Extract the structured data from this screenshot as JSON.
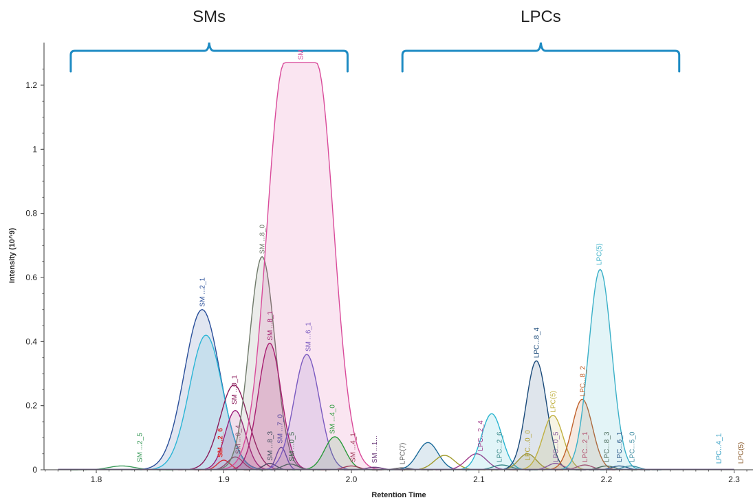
{
  "colors": {
    "bracket": "#1e8bc3",
    "axis": "#333333"
  },
  "chart_data": {
    "type": "area",
    "xlabel": "Retention Time",
    "ylabel": "Intensity (10^9)",
    "xlim": [
      1.76,
      2.31
    ],
    "ylim": [
      0,
      1.32
    ],
    "x_ticks": [
      "1.8",
      "1.9",
      "2.0",
      "2.1",
      "2.2",
      "2.3"
    ],
    "y_ticks": [
      "0",
      "0.2",
      "0.4",
      "0.6",
      "0.8",
      "1",
      "1.2"
    ],
    "groups": [
      {
        "label": "SMs",
        "x_start": 1.78,
        "x_end": 1.997
      },
      {
        "label": "LPCs",
        "x_start": 2.04,
        "x_end": 2.257
      }
    ],
    "series": [
      {
        "label": "SM ...2_5",
        "color": "#3a9a5a",
        "mu": 1.82,
        "height": 0.012,
        "width": 0.01,
        "label_x": 1.834,
        "label_y": 0.015,
        "fill": false
      },
      {
        "label": "SM ...2_1",
        "color": "#2a4f9a",
        "mu": 1.883,
        "height": 0.5,
        "width": 0.014,
        "label_x": 1.883,
        "label_y": 0.5,
        "fill": true
      },
      {
        "label": "",
        "color": "#2bb5d6",
        "mu": 1.886,
        "height": 0.42,
        "width": 0.013,
        "fill": true
      },
      {
        "label": "SM ...2_6",
        "color": "#e03030",
        "mu": 1.9,
        "height": 0.03,
        "width": 0.005,
        "label_x": 1.897,
        "label_y": 0.03,
        "fill": false,
        "bold": true
      },
      {
        "label": "SM ...0_4",
        "color": "#8a4a6a",
        "mu": 1.909,
        "height": 0.04,
        "width": 0.006,
        "label_x": 1.911,
        "label_y": 0.04,
        "fill": false
      },
      {
        "label": "SM ...0_1",
        "color": "#8a1a5a",
        "mu": 1.908,
        "height": 0.265,
        "width": 0.011,
        "label_x": 1.908,
        "label_y": 0.195,
        "fill": false
      },
      {
        "label": "",
        "color": "#9a1a7a",
        "mu": 1.909,
        "height": 0.185,
        "width": 0.008,
        "fill": true
      },
      {
        "label": "SM ...8_0",
        "color": "#6f7a6a",
        "mu": 1.93,
        "height": 0.665,
        "width": 0.01,
        "label_x": 1.93,
        "label_y": 0.665,
        "fill": true
      },
      {
        "label": "SM ...8_1",
        "color": "#a0186a",
        "mu": 1.936,
        "height": 0.395,
        "width": 0.009,
        "label_x": 1.936,
        "label_y": 0.395,
        "fill": true
      },
      {
        "label": "SM ...8_3",
        "color": "#3a4a5a",
        "mu": 1.936,
        "height": 0.02,
        "width": 0.005,
        "label_x": 1.936,
        "label_y": 0.02,
        "fill": false
      },
      {
        "label": "SM ...7_0",
        "color": "#5a4aa0",
        "mu": 1.945,
        "height": 0.07,
        "width": 0.004,
        "label_x": 1.944,
        "label_y": 0.073,
        "fill": false
      },
      {
        "label": "SM ...0_5",
        "color": "#3a6a4a",
        "mu": 1.952,
        "height": 0.018,
        "width": 0.006,
        "label_x": 1.953,
        "label_y": 0.018,
        "fill": false
      },
      {
        "label": "SM",
        "color": "#d94a9a",
        "mu": 1.96,
        "height": 1.27,
        "width": 0.0135,
        "plateau": 0.0125,
        "label_x": 1.96,
        "label_y": 1.27,
        "fill": true
      },
      {
        "label": "SM ...6_1",
        "color": "#7a5ac0",
        "mu": 1.965,
        "height": 0.36,
        "width": 0.01,
        "label_x": 1.966,
        "label_y": 0.36,
        "fill": true
      },
      {
        "label": "SM ...4_0",
        "color": "#2a9a3a",
        "mu": 1.987,
        "height": 0.103,
        "width": 0.008,
        "label_x": 1.985,
        "label_y": 0.103,
        "fill": true
      },
      {
        "label": "SM ...4_1",
        "color": "#a03a5a",
        "mu": 2.0,
        "height": 0.012,
        "width": 0.006,
        "label_x": 2.001,
        "label_y": 0.015,
        "fill": false
      },
      {
        "label": "SM ...1...",
        "color": "#6a3a7a",
        "mu": 2.018,
        "height": 0.008,
        "width": 0.006,
        "label_x": 2.018,
        "label_y": 0.012,
        "fill": false
      },
      {
        "label": "LPC(7)",
        "color": "#5a5a5a",
        "mu": 2.04,
        "height": 0.006,
        "width": 0.006,
        "label_x": 2.04,
        "label_y": 0.008,
        "fill": false
      },
      {
        "label": "",
        "color": "#1a6a9a",
        "mu": 2.06,
        "height": 0.085,
        "width": 0.008,
        "fill": true
      },
      {
        "label": "",
        "color": "#a09a2a",
        "mu": 2.073,
        "height": 0.045,
        "width": 0.008,
        "fill": false
      },
      {
        "label": "LPC...2_4",
        "color": "#a03a8a",
        "mu": 2.098,
        "height": 0.05,
        "width": 0.008,
        "label_x": 2.101,
        "label_y": 0.05,
        "fill": false
      },
      {
        "label": "",
        "color": "#2ab5d0",
        "mu": 2.11,
        "height": 0.175,
        "width": 0.008,
        "fill": true
      },
      {
        "label": "LPC...2_6",
        "color": "#3a8a8a",
        "mu": 2.118,
        "height": 0.015,
        "width": 0.007,
        "label_x": 2.116,
        "label_y": 0.015,
        "fill": false
      },
      {
        "label": "LPC...0_0",
        "color": "#b0a030",
        "mu": 2.138,
        "height": 0.05,
        "width": 0.007,
        "label_x": 2.138,
        "label_y": 0.02,
        "fill": true
      },
      {
        "label": "LPC...8_4",
        "color": "#1a4a7a",
        "mu": 2.145,
        "height": 0.34,
        "width": 0.008,
        "label_x": 2.145,
        "label_y": 0.34,
        "fill": true
      },
      {
        "label": "LPC(5)",
        "color": "#c0b040",
        "mu": 2.158,
        "height": 0.17,
        "width": 0.008,
        "label_x": 2.158,
        "label_y": 0.17,
        "fill": true
      },
      {
        "label": "LPC...0_5",
        "color": "#8a5aa0",
        "mu": 2.16,
        "height": 0.02,
        "width": 0.006,
        "label_x": 2.16,
        "label_y": 0.015,
        "fill": false
      },
      {
        "label": "LPC...8_2",
        "color": "#c0602a",
        "mu": 2.181,
        "height": 0.22,
        "width": 0.008,
        "label_x": 2.181,
        "label_y": 0.22,
        "fill": true
      },
      {
        "label": "LPC...2_1",
        "color": "#b04a6a",
        "mu": 2.183,
        "height": 0.015,
        "width": 0.006,
        "label_x": 2.183,
        "label_y": 0.015,
        "fill": false
      },
      {
        "label": "LPC(5)",
        "color": "#3ab0c8",
        "mu": 2.195,
        "height": 0.625,
        "width": 0.009,
        "label_x": 2.194,
        "label_y": 0.63,
        "fill": true
      },
      {
        "label": "LPC...8_3",
        "color": "#4a6a5a",
        "mu": 2.2,
        "height": 0.012,
        "width": 0.006,
        "label_x": 2.2,
        "label_y": 0.015,
        "fill": false
      },
      {
        "label": "LPC...6_1",
        "color": "#2a5a8a",
        "mu": 2.21,
        "height": 0.012,
        "width": 0.006,
        "label_x": 2.21,
        "label_y": 0.015,
        "fill": false
      },
      {
        "label": "LPC...5_0",
        "color": "#3a8aa0",
        "mu": 2.219,
        "height": 0.012,
        "width": 0.006,
        "label_x": 2.22,
        "label_y": 0.015,
        "fill": false
      },
      {
        "label": "LPC...4_1",
        "color": "#2a9ac0",
        "mu": 2.288,
        "height": 0.0,
        "width": 0.006,
        "label_x": 2.288,
        "label_y": 0.01,
        "fill": false
      },
      {
        "label": "LPC(5)",
        "color": "#8a5a2a",
        "mu": 2.305,
        "height": 0.0,
        "width": 0.006,
        "label_x": 2.305,
        "label_y": 0.01,
        "fill": false
      }
    ]
  }
}
